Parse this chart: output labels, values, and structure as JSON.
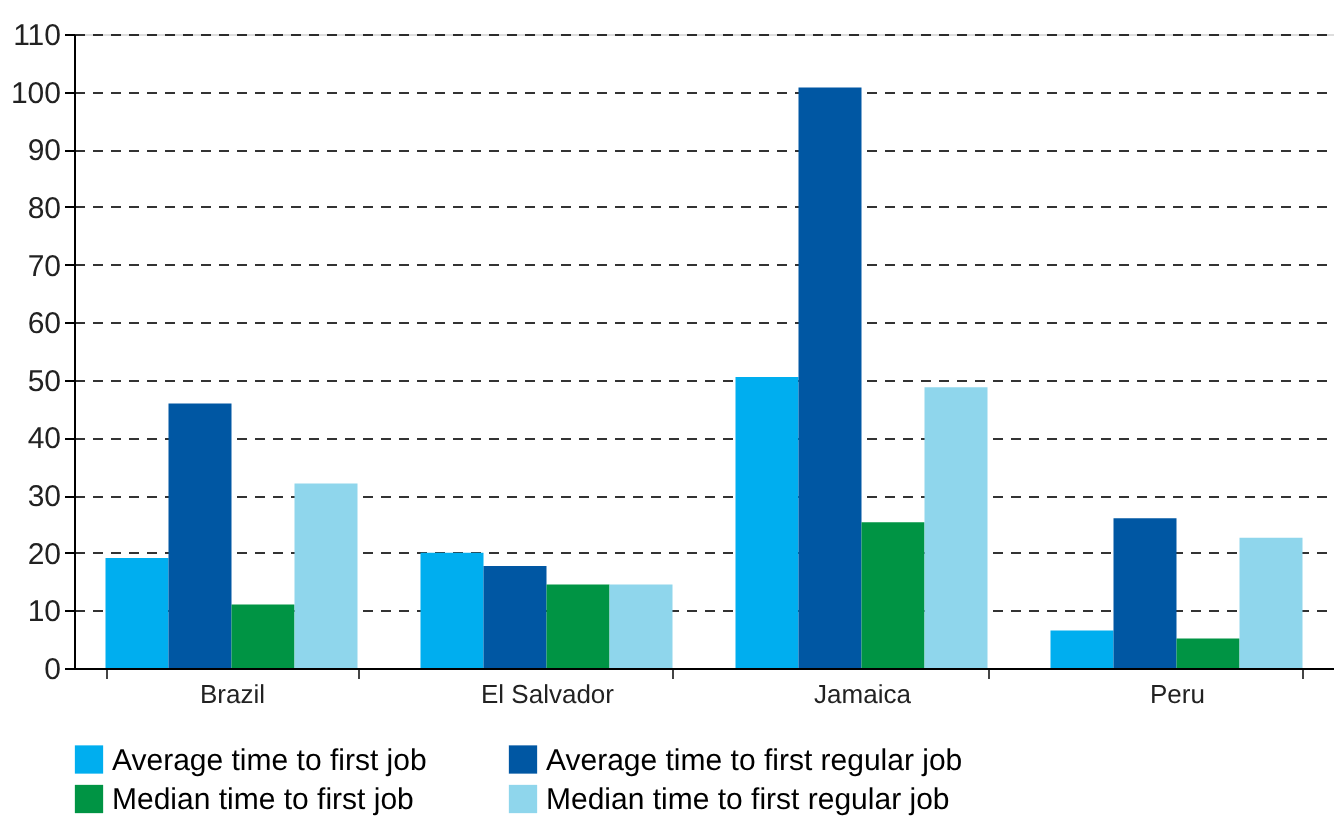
{
  "chart_data": {
    "type": "bar",
    "categories": [
      "Brazil",
      "El Salvador",
      "Jamaica",
      "Peru"
    ],
    "series": [
      {
        "name": "Average time to first job",
        "color": "#00aeef",
        "values": [
          19.1,
          20.0,
          50.5,
          6.5
        ]
      },
      {
        "name": "Average time to first regular job",
        "color": "#0057a3",
        "values": [
          45.9,
          17.7,
          100.7,
          26.0
        ]
      },
      {
        "name": "Median time to first job",
        "color": "#009444",
        "values": [
          11.0,
          14.5,
          25.3,
          5.1
        ]
      },
      {
        "name": "Median time to first regular job",
        "color": "#8fd6ec",
        "values": [
          32.0,
          14.5,
          48.7,
          22.6
        ]
      }
    ],
    "ylim": [
      0,
      110
    ],
    "yticks": [
      0,
      10,
      20,
      30,
      40,
      50,
      60,
      70,
      80,
      90,
      100,
      110
    ],
    "grid": "y",
    "legend": "bottom"
  }
}
